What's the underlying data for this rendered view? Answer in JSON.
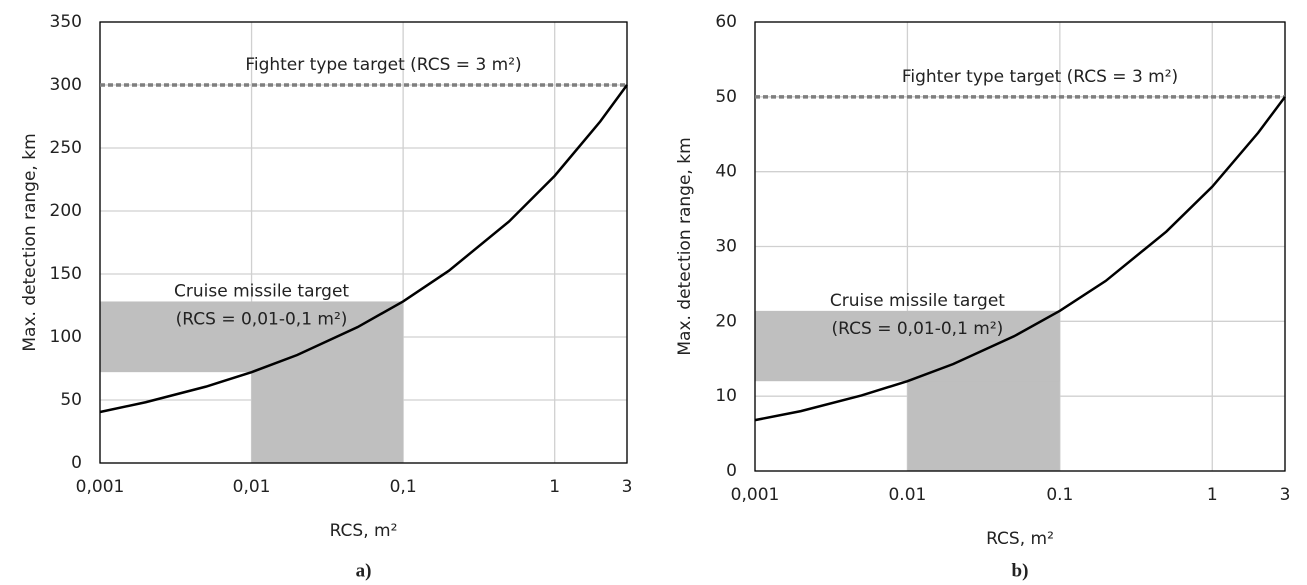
{
  "chart_data": [
    {
      "type": "line",
      "caption": "a)",
      "xlabel": "RCS, m²",
      "ylabel": "Max. detection range, km",
      "xscale": "log",
      "xlim": [
        0.001,
        3
      ],
      "ylim": [
        0,
        350
      ],
      "xticks": [
        {
          "value": 0.001,
          "label": "0,001"
        },
        {
          "value": 0.01,
          "label": "0,01"
        },
        {
          "value": 0.1,
          "label": "0,1"
        },
        1,
        3
      ],
      "yticks": [
        0,
        50,
        100,
        150,
        200,
        250,
        300,
        350
      ],
      "grid": true,
      "x": [
        0.001,
        0.002,
        0.005,
        0.01,
        0.02,
        0.05,
        0.1,
        0.2,
        0.5,
        1,
        2,
        3
      ],
      "series": [
        {
          "color": "#000000",
          "values": [
            40.5,
            48.2,
            60.6,
            72.1,
            85.7,
            107.8,
            128.2,
            152.5,
            191.7,
            227.9,
            271.1,
            300
          ]
        }
      ],
      "reference": {
        "value": 300,
        "label": "Fighter type target (RCS = 3 m²)",
        "color": "#7f7f7f"
      },
      "band": {
        "label": [
          "Cruise missile target",
          "(RCS = 0,01-0,1 m²)"
        ],
        "x": [
          0.01,
          0.1
        ],
        "y": [
          72.1,
          128.2
        ],
        "color": "#bfbfbf"
      }
    },
    {
      "type": "line",
      "caption": "b)",
      "xlabel": "RCS, m²",
      "ylabel": "Max. detection range, km",
      "xscale": "log",
      "xlim": [
        0.001,
        3
      ],
      "ylim": [
        0,
        60
      ],
      "xticks": [
        {
          "value": 0.001,
          "label": "0,001"
        },
        {
          "value": 0.01,
          "label": "0.01"
        },
        {
          "value": 0.1,
          "label": "0.1"
        },
        1,
        3
      ],
      "yticks": [
        0,
        10,
        20,
        30,
        40,
        50,
        60
      ],
      "grid": true,
      "x": [
        0.001,
        0.002,
        0.005,
        0.01,
        0.02,
        0.05,
        0.1,
        0.2,
        0.5,
        1,
        2,
        3
      ],
      "series": [
        {
          "color": "#000000",
          "values": [
            6.8,
            8.0,
            10.1,
            12.0,
            14.3,
            18.0,
            21.4,
            25.4,
            32.0,
            38.0,
            45.2,
            50
          ]
        }
      ],
      "reference": {
        "value": 50,
        "label": "Fighter type target (RCS = 3 m²)",
        "color": "#7f7f7f"
      },
      "band": {
        "label": [
          "Cruise missile target",
          "(RCS = 0,01-0,1 m²)"
        ],
        "x": [
          0.01,
          0.1
        ],
        "y": [
          12.0,
          21.4
        ],
        "color": "#bfbfbf"
      }
    }
  ]
}
